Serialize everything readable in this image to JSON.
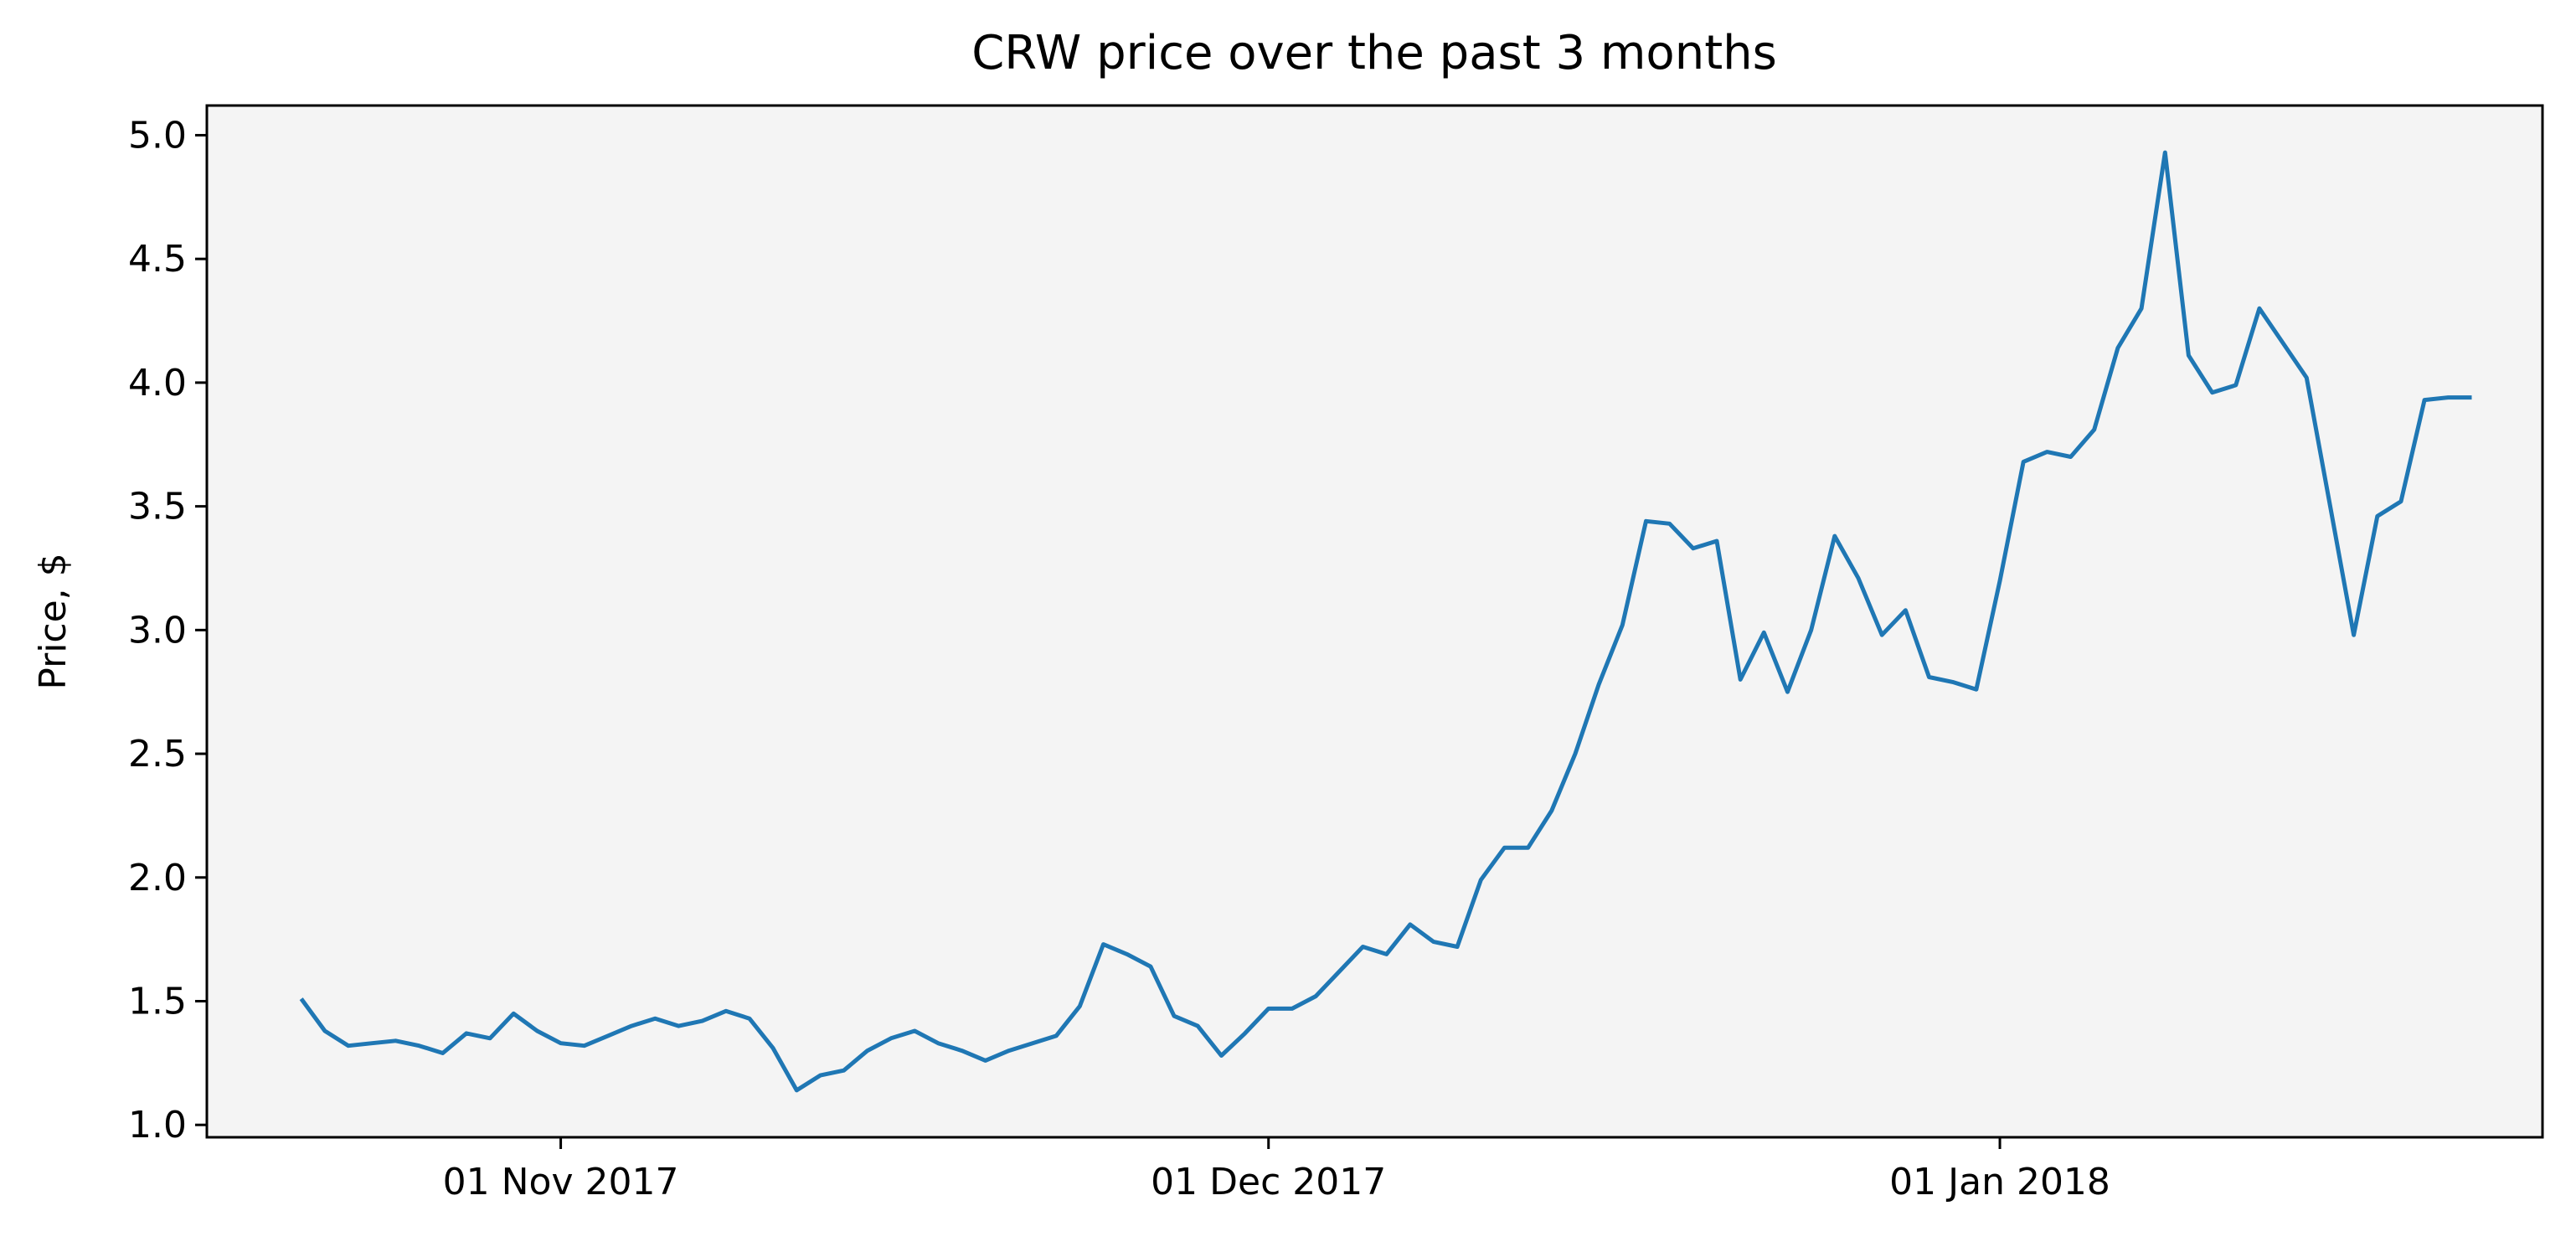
{
  "chart_data": {
    "type": "line",
    "title": "CRW price over the past 3 months",
    "xlabel": "",
    "ylabel": "Price, $",
    "x_ticks": [
      "01 Nov 2017",
      "01 Dec 2017",
      "01 Jan 2018"
    ],
    "x_tick_dates": [
      "2017-11-01",
      "2017-12-01",
      "2018-01-01"
    ],
    "y_ticks": [
      "1.0",
      "1.5",
      "2.0",
      "2.5",
      "3.0",
      "3.5",
      "4.0",
      "4.5",
      "5.0"
    ],
    "xlim": [
      "2017-10-17",
      "2018-01-24"
    ],
    "ylim": [
      0.95,
      5.12
    ],
    "grid": false,
    "colors": {
      "line": "#1f77b4",
      "plot_background": "#f4f4f4",
      "axes": "#000000"
    },
    "series": [
      {
        "x": [
          "2017-10-21",
          "2017-10-22",
          "2017-10-23",
          "2017-10-24",
          "2017-10-25",
          "2017-10-26",
          "2017-10-27",
          "2017-10-28",
          "2017-10-29",
          "2017-10-30",
          "2017-10-31",
          "2017-11-01",
          "2017-11-02",
          "2017-11-03",
          "2017-11-04",
          "2017-11-05",
          "2017-11-06",
          "2017-11-07",
          "2017-11-08",
          "2017-11-09",
          "2017-11-10",
          "2017-11-11",
          "2017-11-12",
          "2017-11-13",
          "2017-11-14",
          "2017-11-15",
          "2017-11-16",
          "2017-11-17",
          "2017-11-18",
          "2017-11-19",
          "2017-11-20",
          "2017-11-21",
          "2017-11-22",
          "2017-11-23",
          "2017-11-24",
          "2017-11-25",
          "2017-11-26",
          "2017-11-27",
          "2017-11-28",
          "2017-11-29",
          "2017-11-30",
          "2017-12-01",
          "2017-12-02",
          "2017-12-03",
          "2017-12-04",
          "2017-12-05",
          "2017-12-06",
          "2017-12-07",
          "2017-12-08",
          "2017-12-09",
          "2017-12-10",
          "2017-12-11",
          "2017-12-12",
          "2017-12-13",
          "2017-12-14",
          "2017-12-15",
          "2017-12-16",
          "2017-12-17",
          "2017-12-18",
          "2017-12-19",
          "2017-12-20",
          "2017-12-21",
          "2017-12-22",
          "2017-12-23",
          "2017-12-24",
          "2017-12-25",
          "2017-12-26",
          "2017-12-27",
          "2017-12-28",
          "2017-12-29",
          "2017-12-30",
          "2017-12-31",
          "2018-01-01",
          "2018-01-02",
          "2018-01-03",
          "2018-01-04",
          "2018-01-05",
          "2018-01-06",
          "2018-01-07",
          "2018-01-08",
          "2018-01-09",
          "2018-01-10",
          "2018-01-11",
          "2018-01-12",
          "2018-01-13",
          "2018-01-14",
          "2018-01-15",
          "2018-01-16",
          "2018-01-17",
          "2018-01-18",
          "2018-01-19",
          "2018-01-20",
          "2018-01-21"
        ],
        "values": [
          1.51,
          1.38,
          1.32,
          1.33,
          1.34,
          1.32,
          1.29,
          1.37,
          1.35,
          1.45,
          1.38,
          1.33,
          1.32,
          1.36,
          1.4,
          1.43,
          1.4,
          1.42,
          1.46,
          1.43,
          1.31,
          1.14,
          1.2,
          1.22,
          1.3,
          1.35,
          1.38,
          1.33,
          1.3,
          1.26,
          1.3,
          1.33,
          1.36,
          1.48,
          1.73,
          1.69,
          1.64,
          1.44,
          1.4,
          1.28,
          1.37,
          1.47,
          1.47,
          1.52,
          1.62,
          1.72,
          1.69,
          1.81,
          1.74,
          1.72,
          1.99,
          2.12,
          2.12,
          2.27,
          2.5,
          2.78,
          3.02,
          3.44,
          3.43,
          3.33,
          3.36,
          2.8,
          2.99,
          2.75,
          3.0,
          3.38,
          3.21,
          2.98,
          3.08,
          2.81,
          2.79,
          2.76,
          3.2,
          3.68,
          3.72,
          3.7,
          3.81,
          4.14,
          4.3,
          4.93,
          4.11,
          3.96,
          3.99,
          4.3,
          4.16,
          4.02,
          3.5,
          2.98,
          3.46,
          3.52,
          3.93,
          3.94,
          3.94
        ]
      }
    ]
  }
}
